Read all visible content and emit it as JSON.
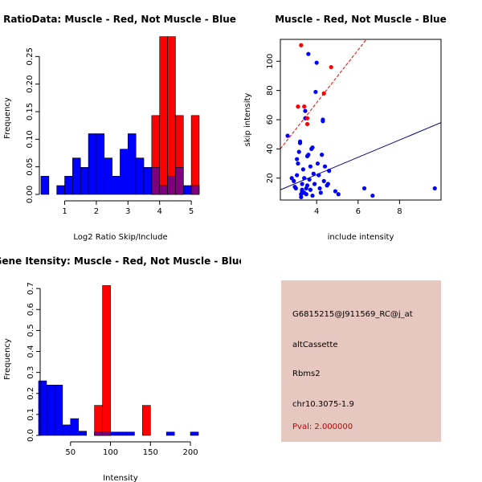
{
  "colors": {
    "muscle": "#ff0000",
    "not_muscle": "#0000ff",
    "overlap": "#7f007f",
    "panel_bg": "#e6c8c0",
    "pval_text": "#c00000"
  },
  "chart_data": [
    {
      "id": "ratio-hist",
      "type": "bar",
      "title": "RatioData: Muscle - Red, Not Muscle - Blue",
      "xlabel": "Log2 Ratio Skip/Include",
      "ylabel": "Frequency",
      "xlim": [
        0.2,
        5.2
      ],
      "ylim": [
        0,
        0.3
      ],
      "xticks": [
        1,
        2,
        3,
        4,
        5
      ],
      "yticks": [
        0.0,
        0.05,
        0.1,
        0.15,
        0.2,
        0.25
      ],
      "ytick_labels": [
        "0.00",
        "0.05",
        "0.10",
        "0.15",
        "0.20",
        "0.25"
      ],
      "series": [
        {
          "name": "Not Muscle",
          "color": "#0000ff",
          "bins": [
            {
              "x0": 0.25,
              "x1": 0.5,
              "value": 0.033
            },
            {
              "x0": 0.5,
              "x1": 0.75,
              "value": 0.0
            },
            {
              "x0": 0.75,
              "x1": 1.0,
              "value": 0.016
            },
            {
              "x0": 1.0,
              "x1": 1.25,
              "value": 0.033
            },
            {
              "x0": 1.25,
              "x1": 1.5,
              "value": 0.066
            },
            {
              "x0": 1.5,
              "x1": 1.75,
              "value": 0.049
            },
            {
              "x0": 1.75,
              "x1": 2.0,
              "value": 0.11
            },
            {
              "x0": 2.0,
              "x1": 2.25,
              "value": 0.11
            },
            {
              "x0": 2.25,
              "x1": 2.5,
              "value": 0.066
            },
            {
              "x0": 2.5,
              "x1": 2.75,
              "value": 0.033
            },
            {
              "x0": 2.75,
              "x1": 3.0,
              "value": 0.082
            },
            {
              "x0": 3.0,
              "x1": 3.25,
              "value": 0.11
            },
            {
              "x0": 3.25,
              "x1": 3.5,
              "value": 0.066
            },
            {
              "x0": 3.5,
              "x1": 3.75,
              "value": 0.049
            },
            {
              "x0": 3.75,
              "x1": 4.0,
              "value": 0.049
            },
            {
              "x0": 4.0,
              "x1": 4.25,
              "value": 0.016
            },
            {
              "x0": 4.25,
              "x1": 4.5,
              "value": 0.033
            },
            {
              "x0": 4.5,
              "x1": 4.75,
              "value": 0.049
            },
            {
              "x0": 4.75,
              "x1": 5.0,
              "value": 0.016
            },
            {
              "x0": 5.0,
              "x1": 5.25,
              "value": 0.016
            }
          ]
        },
        {
          "name": "Muscle",
          "color": "#ff0000",
          "bins": [
            {
              "x0": 3.75,
              "x1": 4.0,
              "value": 0.143
            },
            {
              "x0": 4.0,
              "x1": 4.25,
              "value": 0.286
            },
            {
              "x0": 4.25,
              "x1": 4.5,
              "value": 0.286
            },
            {
              "x0": 4.5,
              "x1": 4.75,
              "value": 0.143
            },
            {
              "x0": 4.75,
              "x1": 5.0,
              "value": 0.0
            },
            {
              "x0": 5.0,
              "x1": 5.25,
              "value": 0.143
            }
          ]
        }
      ]
    },
    {
      "id": "scatter",
      "type": "scatter",
      "title": "Muscle - Red, Not Muscle - Blue",
      "xlabel": "include intensity",
      "ylabel": "skip intensity",
      "xlim": [
        2.25,
        10.0
      ],
      "ylim": [
        5,
        115
      ],
      "xticks": [
        4,
        6,
        8
      ],
      "yticks": [
        20,
        40,
        60,
        80,
        100
      ],
      "series": [
        {
          "name": "Not Muscle",
          "color": "#0000ff",
          "points": [
            [
              2.6,
              49
            ],
            [
              2.8,
              20
            ],
            [
              2.9,
              18
            ],
            [
              2.95,
              14
            ],
            [
              3.0,
              13
            ],
            [
              3.05,
              22
            ],
            [
              3.1,
              30
            ],
            [
              3.05,
              33
            ],
            [
              3.15,
              38
            ],
            [
              3.2,
              44
            ],
            [
              3.2,
              45
            ],
            [
              3.25,
              9
            ],
            [
              3.3,
              11
            ],
            [
              3.3,
              12
            ],
            [
              3.3,
              16
            ],
            [
              3.35,
              10
            ],
            [
              3.35,
              26
            ],
            [
              3.4,
              20
            ],
            [
              3.45,
              61
            ],
            [
              3.45,
              66
            ],
            [
              3.5,
              13
            ],
            [
              3.55,
              15
            ],
            [
              3.55,
              35
            ],
            [
              3.6,
              36
            ],
            [
              3.6,
              105
            ],
            [
              3.65,
              19
            ],
            [
              3.7,
              12
            ],
            [
              3.7,
              28
            ],
            [
              3.75,
              40
            ],
            [
              3.8,
              41
            ],
            [
              3.8,
              8
            ],
            [
              3.85,
              23
            ],
            [
              3.9,
              16
            ],
            [
              3.95,
              79
            ],
            [
              4.0,
              99
            ],
            [
              4.05,
              30
            ],
            [
              4.1,
              22
            ],
            [
              4.15,
              13
            ],
            [
              4.2,
              10
            ],
            [
              4.25,
              36
            ],
            [
              4.3,
              59
            ],
            [
              4.3,
              60
            ],
            [
              4.35,
              18
            ],
            [
              4.4,
              28
            ],
            [
              4.5,
              15
            ],
            [
              4.55,
              16
            ],
            [
              4.6,
              25
            ],
            [
              4.9,
              11
            ],
            [
              5.05,
              9
            ],
            [
              6.3,
              13
            ],
            [
              6.7,
              8
            ],
            [
              9.7,
              13
            ],
            [
              3.25,
              7
            ],
            [
              3.5,
              9
            ],
            [
              3.4,
              10
            ]
          ]
        },
        {
          "name": "Muscle",
          "color": "#ff0000",
          "points": [
            [
              3.25,
              111
            ],
            [
              3.1,
              69
            ],
            [
              3.4,
              69
            ],
            [
              3.55,
              61
            ],
            [
              3.55,
              57
            ],
            [
              4.35,
              78
            ],
            [
              4.7,
              96
            ]
          ]
        }
      ],
      "fit_lines": [
        {
          "name": "Muscle fit",
          "color": "#ff0000",
          "dash": true,
          "from": [
            2.25,
            40
          ],
          "to": [
            6.4,
            115
          ]
        },
        {
          "name": "Not Muscle fit",
          "color": "#00007f",
          "dash": false,
          "from": [
            2.25,
            12
          ],
          "to": [
            10.0,
            58
          ]
        }
      ]
    },
    {
      "id": "gene-hist",
      "type": "bar",
      "title": "Gene Itensity: Muscle - Red, Not Muscle - Blue",
      "xlabel": "Intensity",
      "ylabel": "Frequency",
      "xlim": [
        10,
        208
      ],
      "ylim": [
        0,
        0.735
      ],
      "xticks": [
        50,
        100,
        150,
        200
      ],
      "yticks": [
        0.0,
        0.1,
        0.2,
        0.3,
        0.4,
        0.5,
        0.6,
        0.7
      ],
      "ytick_labels": [
        "0.0",
        "0.1",
        "0.2",
        "0.3",
        "0.4",
        "0.5",
        "0.6",
        "0.7"
      ],
      "series": [
        {
          "name": "Not Muscle",
          "color": "#0000ff",
          "bins": [
            {
              "x0": 10,
              "x1": 20,
              "value": 0.26
            },
            {
              "x0": 20,
              "x1": 30,
              "value": 0.24
            },
            {
              "x0": 30,
              "x1": 40,
              "value": 0.24
            },
            {
              "x0": 40,
              "x1": 50,
              "value": 0.05
            },
            {
              "x0": 50,
              "x1": 60,
              "value": 0.08
            },
            {
              "x0": 60,
              "x1": 70,
              "value": 0.02
            },
            {
              "x0": 70,
              "x1": 80,
              "value": 0.0
            },
            {
              "x0": 80,
              "x1": 90,
              "value": 0.016
            },
            {
              "x0": 90,
              "x1": 100,
              "value": 0.016
            },
            {
              "x0": 100,
              "x1": 110,
              "value": 0.016
            },
            {
              "x0": 110,
              "x1": 120,
              "value": 0.016
            },
            {
              "x0": 120,
              "x1": 130,
              "value": 0.016
            },
            {
              "x0": 130,
              "x1": 140,
              "value": 0.0
            },
            {
              "x0": 140,
              "x1": 150,
              "value": 0.0
            },
            {
              "x0": 150,
              "x1": 160,
              "value": 0.0
            },
            {
              "x0": 160,
              "x1": 170,
              "value": 0.0
            },
            {
              "x0": 170,
              "x1": 180,
              "value": 0.016
            },
            {
              "x0": 180,
              "x1": 190,
              "value": 0.0
            },
            {
              "x0": 190,
              "x1": 200,
              "value": 0.0
            },
            {
              "x0": 200,
              "x1": 210,
              "value": 0.016
            }
          ]
        },
        {
          "name": "Muscle",
          "color": "#ff0000",
          "bins": [
            {
              "x0": 80,
              "x1": 90,
              "value": 0.143
            },
            {
              "x0": 90,
              "x1": 100,
              "value": 0.714
            },
            {
              "x0": 140,
              "x1": 150,
              "value": 0.143
            }
          ]
        }
      ]
    }
  ],
  "info_panel": {
    "probe_id": "G6815215@J911569_RC@j_at",
    "event_type": "altCassette",
    "gene": "Rbms2",
    "location": "chr10.3075-1.9",
    "pval": "Pval: 2.000000"
  }
}
